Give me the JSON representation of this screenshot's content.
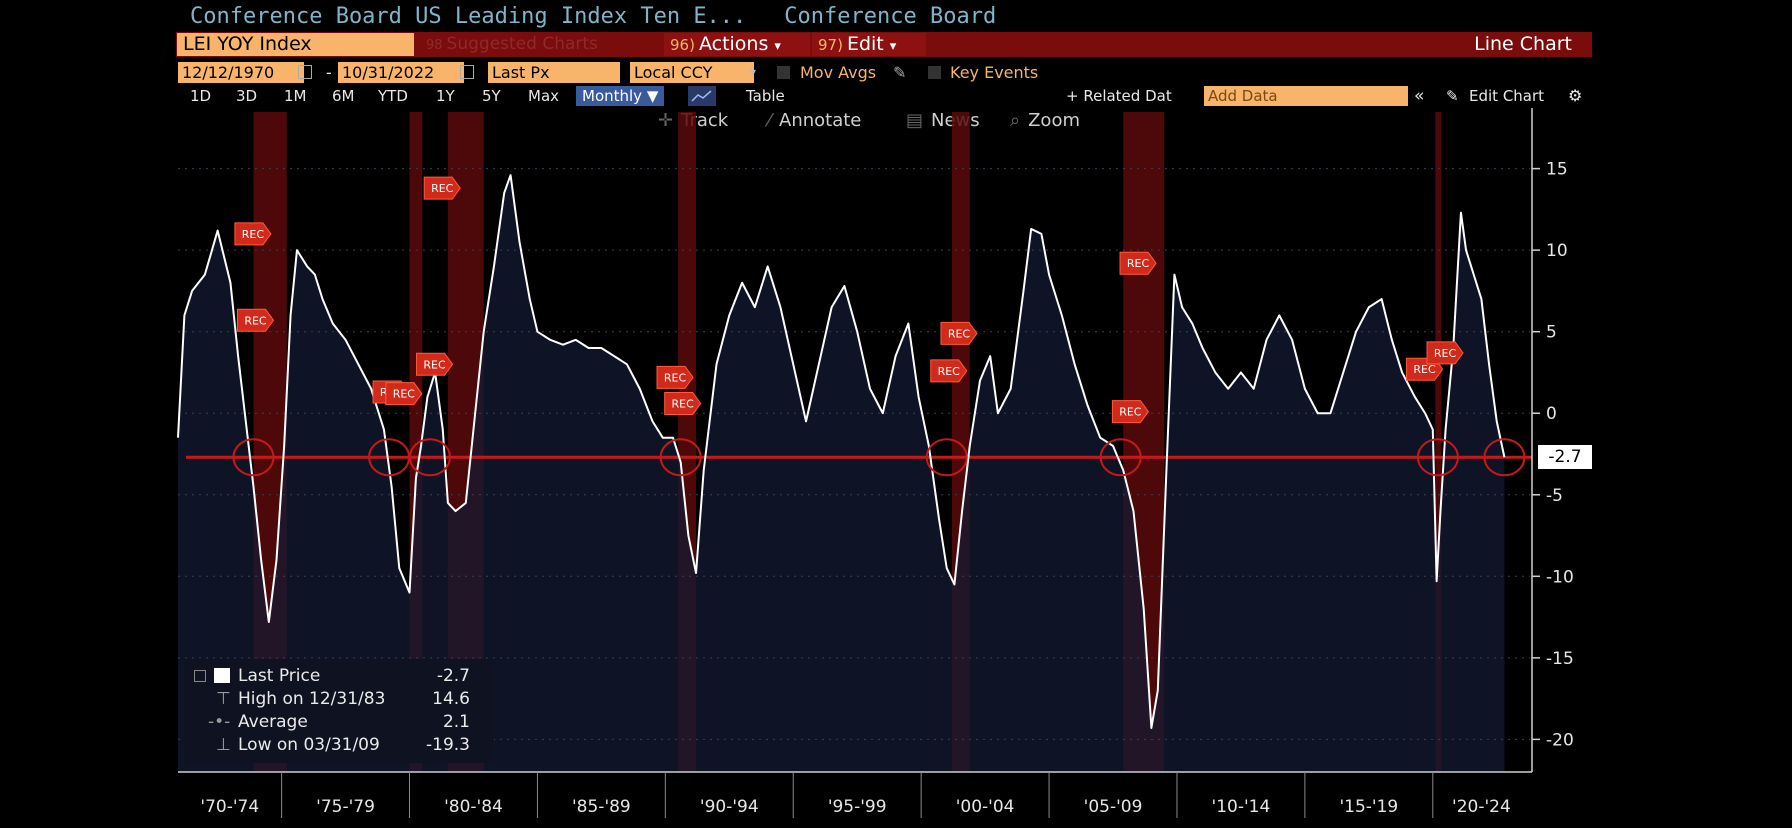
{
  "header": {
    "title": "Conference Board US Leading Index Ten E...",
    "source": "Conference Board"
  },
  "toolbar": {
    "ticker": "LEI YOY Index",
    "suggested": "Suggested Charts",
    "suggested_num": "98",
    "actions_num": "96)",
    "actions": "Actions",
    "edit_num": "97)",
    "edit": "Edit",
    "chart_type": "Line Chart",
    "caret": "▾"
  },
  "options": {
    "start_date": "12/12/1970",
    "end_date": "10/31/2022",
    "dash": "-",
    "field": "Last Px",
    "currency": "Local CCY",
    "mov_avgs": "Mov Avgs",
    "key_events": "Key Events"
  },
  "ranges": {
    "items": [
      "1D",
      "3D",
      "1M",
      "6M",
      "YTD",
      "1Y",
      "5Y",
      "Max"
    ],
    "frequency": "Monthly ▼",
    "table": "Table",
    "related": "+ Related Dat",
    "add_data": "Add Data",
    "edit_chart": "Edit Chart"
  },
  "tools": {
    "track": "Track",
    "annotate": "Annotate",
    "news": "News",
    "zoom": "Zoom"
  },
  "legend": {
    "last_price_label": "Last Price",
    "last_price": "-2.7",
    "high_label": "High on 12/31/83",
    "high": "14.6",
    "average_label": "Average",
    "average": "2.1",
    "low_label": "Low on 03/31/09",
    "low": "-19.3"
  },
  "last_value_tag": "-2.7",
  "rec_label": "REC",
  "colors": {
    "line": "#ffffff",
    "area": "#141a33",
    "recession": "#5a0a0a",
    "threshold": "#c81818",
    "marker": "#d22a1a"
  },
  "chart_data": {
    "type": "line",
    "title": "",
    "xlabel": "",
    "ylabel": "",
    "ylim": [
      -22,
      17
    ],
    "y_ticks": [
      15,
      10,
      5,
      0,
      -5,
      -10,
      -15,
      -20
    ],
    "x_tick_labels": [
      "'70-'74",
      "'75-'79",
      "'80-'84",
      "'85-'89",
      "'90-'94",
      "'95-'99",
      "'00-'04",
      "'05-'09",
      "'10-'14",
      "'15-'19",
      "'20-'24"
    ],
    "x_range": [
      1970.95,
      2023.8
    ],
    "threshold": -2.7,
    "recessions": [
      [
        1973.9,
        1975.2
      ],
      [
        1980.0,
        1980.5
      ],
      [
        1981.5,
        1982.9
      ],
      [
        1990.5,
        1991.2
      ],
      [
        2001.2,
        2001.9
      ],
      [
        2007.9,
        2009.5
      ],
      [
        2020.1,
        2020.3
      ]
    ],
    "series": [
      {
        "x": [
          1970.95,
          1971.2,
          1971.5,
          1972.0,
          1972.5,
          1973.0,
          1973.3,
          1973.6,
          1973.9,
          1974.2,
          1974.5,
          1974.8,
          1975.1,
          1975.35,
          1975.6,
          1976.0,
          1976.3,
          1976.6,
          1977.0,
          1977.5,
          1978.0,
          1978.5,
          1979.0,
          1979.3,
          1979.6,
          1980.0,
          1980.25,
          1980.45,
          1980.7,
          1981.0,
          1981.3,
          1981.5,
          1981.8,
          1982.2,
          1982.6,
          1982.9,
          1983.3,
          1983.7,
          1983.95,
          1984.3,
          1984.7,
          1985.0,
          1985.5,
          1986.0,
          1986.5,
          1987.0,
          1987.5,
          1988.0,
          1988.5,
          1989.0,
          1989.5,
          1989.9,
          1990.3,
          1990.6,
          1990.9,
          1991.2,
          1991.5,
          1992.0,
          1992.5,
          1993.0,
          1993.5,
          1994.0,
          1994.5,
          1995.0,
          1995.5,
          1996.0,
          1996.5,
          1997.0,
          1997.5,
          1998.0,
          1998.5,
          1999.0,
          1999.5,
          1999.9,
          2000.3,
          2000.7,
          2001.0,
          2001.3,
          2001.6,
          2001.9,
          2002.3,
          2002.7,
          2003.0,
          2003.5,
          2004.0,
          2004.3,
          2004.7,
          2005.0,
          2005.5,
          2006.0,
          2006.5,
          2007.0,
          2007.5,
          2007.9,
          2008.3,
          2008.7,
          2009.0,
          2009.25,
          2009.6,
          2009.9,
          2010.2,
          2010.6,
          2011.0,
          2011.5,
          2012.0,
          2012.5,
          2013.0,
          2013.5,
          2014.0,
          2014.5,
          2015.0,
          2015.5,
          2016.0,
          2016.5,
          2017.0,
          2017.5,
          2018.0,
          2018.4,
          2018.8,
          2019.3,
          2019.7,
          2020.0,
          2020.15,
          2020.3,
          2020.5,
          2020.8,
          2021.1,
          2021.3,
          2021.6,
          2021.9,
          2022.2,
          2022.5,
          2022.8
        ],
        "values": [
          -1.5,
          6.0,
          7.5,
          8.5,
          11.2,
          8.0,
          3.5,
          -0.5,
          -4.5,
          -9.0,
          -12.8,
          -9.0,
          -2.0,
          6.0,
          10.0,
          9.0,
          8.5,
          7.0,
          5.5,
          4.5,
          3.0,
          1.5,
          -1.0,
          -4.5,
          -9.5,
          -11.0,
          -4.0,
          -2.0,
          1.0,
          2.5,
          -1.0,
          -5.5,
          -6.0,
          -5.5,
          0.5,
          5.0,
          9.0,
          13.5,
          14.6,
          10.5,
          7.0,
          5.0,
          4.5,
          4.2,
          4.5,
          4.0,
          4.0,
          3.5,
          3.0,
          1.5,
          -0.5,
          -1.5,
          -1.5,
          -3.0,
          -7.5,
          -9.8,
          -3.5,
          3.0,
          6.0,
          8.0,
          6.5,
          9.0,
          6.5,
          3.0,
          -0.5,
          3.0,
          6.5,
          7.8,
          5.0,
          1.5,
          0.0,
          3.5,
          5.5,
          1.0,
          -2.0,
          -6.5,
          -9.5,
          -10.5,
          -6.0,
          -2.0,
          2.0,
          3.5,
          0.0,
          1.5,
          7.5,
          11.3,
          11.0,
          8.5,
          6.0,
          3.0,
          0.5,
          -1.5,
          -2.0,
          -3.5,
          -6.0,
          -12.0,
          -19.3,
          -17.0,
          -3.0,
          8.5,
          6.5,
          5.5,
          4.0,
          2.5,
          1.5,
          2.5,
          1.5,
          4.5,
          6.0,
          4.5,
          1.5,
          0.0,
          0.0,
          2.5,
          5.0,
          6.5,
          7.0,
          4.5,
          2.5,
          1.0,
          0.0,
          -1.0,
          -10.3,
          -6.0,
          -1.0,
          4.0,
          12.3,
          10.0,
          8.5,
          7.0,
          3.0,
          -0.5,
          -2.7
        ]
      }
    ],
    "events": [
      {
        "x": 1973.8,
        "y": 11.0,
        "tag": "REC"
      },
      {
        "x": 1973.9,
        "y": 5.7,
        "tag": "REC"
      },
      {
        "x": 1979.2,
        "y": 1.3,
        "tag": "REC"
      },
      {
        "x": 1979.7,
        "y": 1.2,
        "tag": "REC"
      },
      {
        "x": 1980.9,
        "y": 3.0,
        "tag": "REC"
      },
      {
        "x": 1981.2,
        "y": 13.8,
        "tag": "REC"
      },
      {
        "x": 1990.3,
        "y": 2.2,
        "tag": "REC"
      },
      {
        "x": 1990.6,
        "y": 0.6,
        "tag": "REC"
      },
      {
        "x": 2001.0,
        "y": 2.6,
        "tag": "REC"
      },
      {
        "x": 2001.4,
        "y": 4.9,
        "tag": "REC"
      },
      {
        "x": 2008.4,
        "y": 9.2,
        "tag": "REC"
      },
      {
        "x": 2008.1,
        "y": 0.1,
        "tag": "REC"
      },
      {
        "x": 2019.6,
        "y": 2.7,
        "tag": "REC"
      },
      {
        "x": 2020.4,
        "y": 3.7,
        "tag": "REC"
      }
    ],
    "threshold_crossings": [
      1973.9,
      1979.2,
      1980.8,
      1990.6,
      2001.0,
      2007.8,
      2020.2,
      2022.8
    ],
    "grid": true,
    "legend_position": "bottom-left"
  }
}
